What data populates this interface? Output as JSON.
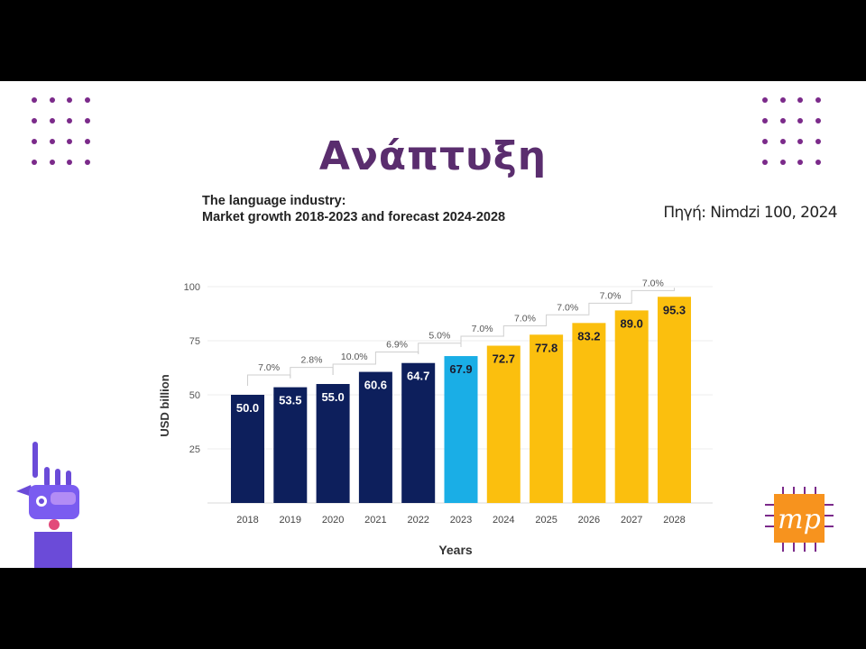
{
  "slide": {
    "title": "Ανάπτυξη",
    "source": "Πηγή: Nimdzi 100, 2024"
  },
  "logo": {
    "text": "mp"
  },
  "colors": {
    "past": "#0d1f5c",
    "current": "#1aaee6",
    "forecast": "#fbbf0e",
    "title": "#5a2d6e",
    "dots": "#7b2a8a"
  },
  "chart_data": {
    "type": "bar",
    "title": "The language industry:",
    "subtitle": "Market growth 2018-2023 and forecast 2024-2028",
    "xlabel": "Years",
    "ylabel": "USD billion",
    "ylim": [
      0,
      100
    ],
    "yticks": [
      25,
      50,
      75,
      100
    ],
    "categories": [
      "2018",
      "2019",
      "2020",
      "2021",
      "2022",
      "2023",
      "2024",
      "2025",
      "2026",
      "2027",
      "2028"
    ],
    "values": [
      50.0,
      53.5,
      55.0,
      60.6,
      64.7,
      67.9,
      72.7,
      77.8,
      83.2,
      89.0,
      95.3
    ],
    "value_labels": [
      "50.0",
      "53.5",
      "55.0",
      "60.6",
      "64.7",
      "67.9",
      "72.7",
      "77.8",
      "83.2",
      "89.0",
      "95.3"
    ],
    "growth_labels": [
      "7.0%",
      "2.8%",
      "10.0%",
      "6.9%",
      "5.0%",
      "7.0%",
      "7.0%",
      "7.0%",
      "7.0%",
      "7.0%"
    ],
    "bar_groups": [
      "past",
      "past",
      "past",
      "past",
      "past",
      "current",
      "forecast",
      "forecast",
      "forecast",
      "forecast",
      "forecast"
    ],
    "grid": true,
    "legend": "none"
  }
}
